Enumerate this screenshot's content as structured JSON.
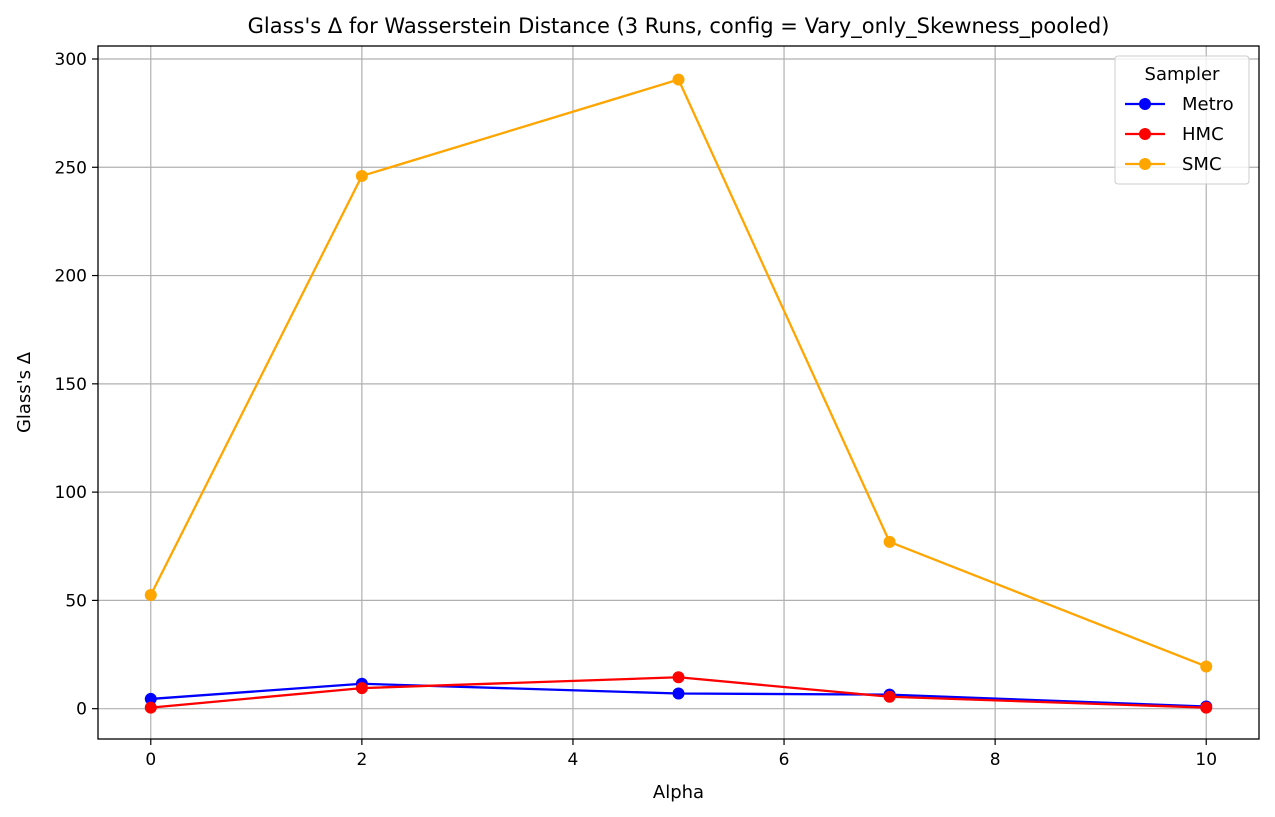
{
  "chart_data": {
    "type": "line",
    "title": "Glass's Δ for Wasserstein Distance (3 Runs, config = Vary_only_Skewness_pooled)",
    "xlabel": "Alpha",
    "ylabel": "Glass's Δ",
    "x": [
      0,
      2,
      5,
      7,
      10
    ],
    "xlim": [
      -0.5,
      10.5
    ],
    "ylim": [
      -14,
      306
    ],
    "xticks": [
      0,
      2,
      4,
      6,
      8,
      10
    ],
    "yticks": [
      0,
      50,
      100,
      150,
      200,
      250,
      300
    ],
    "grid": true,
    "marker": "circle",
    "legend": {
      "title": "Sampler",
      "position": "top-right"
    },
    "series": [
      {
        "name": "Metro",
        "color": "#0000ff",
        "values": [
          4.5,
          11.5,
          7,
          6.5,
          1
        ]
      },
      {
        "name": "HMC",
        "color": "#ff0000",
        "values": [
          0.5,
          9.5,
          14.5,
          5.5,
          0.5
        ]
      },
      {
        "name": "SMC",
        "color": "#ffa500",
        "values": [
          52.5,
          246,
          290.5,
          77,
          19.5
        ]
      }
    ]
  }
}
